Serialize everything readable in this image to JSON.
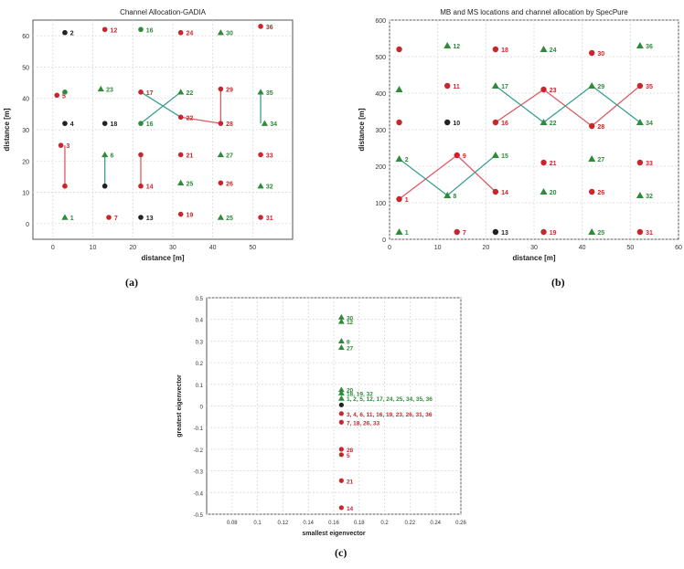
{
  "figure": {
    "label_a": "(a)",
    "label_b": "(b)",
    "label_c": "(c)"
  },
  "colors": {
    "red": "#c8262c",
    "green": "#2f8a3a",
    "black": "#222222",
    "link_red": "#e05a63",
    "link_green": "#3aa08f",
    "grid": "#d9d9d9"
  },
  "chart_data": [
    {
      "type": "scatter",
      "title": "Channel Allocation-GADIA",
      "xlabel": "distance [m]",
      "ylabel": "distance [m]",
      "xlim": [
        -5,
        60
      ],
      "ylim": [
        -5,
        65
      ],
      "xticks": [
        0,
        10,
        20,
        30,
        40,
        50
      ],
      "yticks": [
        0,
        10,
        20,
        30,
        40,
        50,
        60
      ],
      "grid": true,
      "points": [
        {
          "x": 1,
          "y": 41,
          "color": "red",
          "marker": "circle",
          "label": "5"
        },
        {
          "x": 2,
          "y": 25,
          "color": "red",
          "marker": "circle",
          "label": "3"
        },
        {
          "x": 3,
          "y": 42,
          "color": "green",
          "marker": "circle",
          "label": ""
        },
        {
          "x": 3,
          "y": 61,
          "color": "black",
          "marker": "circle",
          "label": "2"
        },
        {
          "x": 3,
          "y": 32,
          "color": "black",
          "marker": "circle",
          "label": "4"
        },
        {
          "x": 3,
          "y": 12,
          "color": "red",
          "marker": "circle",
          "label": ""
        },
        {
          "x": 3,
          "y": 2,
          "color": "green",
          "marker": "triangle",
          "label": "1"
        },
        {
          "x": 12,
          "y": 43,
          "color": "green",
          "marker": "triangle",
          "label": "23"
        },
        {
          "x": 13,
          "y": 62,
          "color": "red",
          "marker": "circle",
          "label": "12"
        },
        {
          "x": 13,
          "y": 32,
          "color": "black",
          "marker": "circle",
          "label": "18"
        },
        {
          "x": 13,
          "y": 22,
          "color": "green",
          "marker": "triangle",
          "label": "6"
        },
        {
          "x": 13,
          "y": 12,
          "color": "black",
          "marker": "circle",
          "label": ""
        },
        {
          "x": 14,
          "y": 2,
          "color": "red",
          "marker": "circle",
          "label": "7"
        },
        {
          "x": 22,
          "y": 62,
          "color": "green",
          "marker": "circle",
          "label": "16"
        },
        {
          "x": 22,
          "y": 42,
          "color": "red",
          "marker": "circle",
          "label": "17"
        },
        {
          "x": 22,
          "y": 32,
          "color": "green",
          "marker": "circle",
          "label": "16"
        },
        {
          "x": 22,
          "y": 22,
          "color": "red",
          "marker": "circle",
          "label": ""
        },
        {
          "x": 22,
          "y": 12,
          "color": "red",
          "marker": "circle",
          "label": "14"
        },
        {
          "x": 22,
          "y": 2,
          "color": "black",
          "marker": "circle",
          "label": "13"
        },
        {
          "x": 32,
          "y": 61,
          "color": "red",
          "marker": "circle",
          "label": "24"
        },
        {
          "x": 32,
          "y": 42,
          "color": "green",
          "marker": "triangle",
          "label": "22"
        },
        {
          "x": 32,
          "y": 34,
          "color": "red",
          "marker": "circle",
          "label": "22"
        },
        {
          "x": 32,
          "y": 22,
          "color": "red",
          "marker": "circle",
          "label": "21"
        },
        {
          "x": 32,
          "y": 13,
          "color": "green",
          "marker": "triangle",
          "label": "25"
        },
        {
          "x": 32,
          "y": 3,
          "color": "red",
          "marker": "circle",
          "label": "19"
        },
        {
          "x": 42,
          "y": 61,
          "color": "green",
          "marker": "triangle",
          "label": "30"
        },
        {
          "x": 42,
          "y": 43,
          "color": "red",
          "marker": "circle",
          "label": "29"
        },
        {
          "x": 42,
          "y": 32,
          "color": "red",
          "marker": "circle",
          "label": "28"
        },
        {
          "x": 42,
          "y": 22,
          "color": "green",
          "marker": "triangle",
          "label": "27"
        },
        {
          "x": 42,
          "y": 13,
          "color": "red",
          "marker": "circle",
          "label": "26"
        },
        {
          "x": 42,
          "y": 2,
          "color": "green",
          "marker": "triangle",
          "label": "25"
        },
        {
          "x": 52,
          "y": 63,
          "color": "red",
          "marker": "circle",
          "label": "36"
        },
        {
          "x": 52,
          "y": 42,
          "color": "green",
          "marker": "triangle",
          "label": "35"
        },
        {
          "x": 53,
          "y": 32,
          "color": "green",
          "marker": "triangle",
          "label": "34"
        },
        {
          "x": 52,
          "y": 22,
          "color": "red",
          "marker": "circle",
          "label": "33"
        },
        {
          "x": 52,
          "y": 12,
          "color": "green",
          "marker": "triangle",
          "label": "32"
        },
        {
          "x": 52,
          "y": 2,
          "color": "red",
          "marker": "circle",
          "label": "31"
        }
      ],
      "links": [
        {
          "x1": 3,
          "y1": 25,
          "x2": 3,
          "y2": 12,
          "color": "link_red"
        },
        {
          "x1": 13,
          "y1": 22,
          "x2": 13,
          "y2": 12,
          "color": "link_green"
        },
        {
          "x1": 22,
          "y1": 22,
          "x2": 22,
          "y2": 12,
          "color": "link_red"
        },
        {
          "x1": 22,
          "y1": 32,
          "x2": 32,
          "y2": 42,
          "color": "link_green"
        },
        {
          "x1": 22,
          "y1": 42,
          "x2": 32,
          "y2": 34,
          "color": "link_green"
        },
        {
          "x1": 32,
          "y1": 34,
          "x2": 42,
          "y2": 32,
          "color": "link_red"
        },
        {
          "x1": 42,
          "y1": 43,
          "x2": 42,
          "y2": 32,
          "color": "link_red"
        },
        {
          "x1": 52,
          "y1": 42,
          "x2": 52,
          "y2": 32,
          "color": "link_green"
        }
      ]
    },
    {
      "type": "scatter",
      "title": "MB and MS locations and channel allocation by SpecPure",
      "xlabel": "distance [m]",
      "ylabel": "distance [m]",
      "xlim": [
        0,
        60
      ],
      "ylim": [
        0,
        600
      ],
      "xticks": [
        0,
        10,
        20,
        30,
        40,
        50,
        60
      ],
      "yticks": [
        0,
        100,
        200,
        300,
        400,
        500,
        600
      ],
      "grid": true,
      "points": [
        {
          "x": 2,
          "y": 520,
          "color": "red",
          "marker": "circle",
          "label": ""
        },
        {
          "x": 2,
          "y": 410,
          "color": "green",
          "marker": "triangle",
          "label": ""
        },
        {
          "x": 2,
          "y": 320,
          "color": "red",
          "marker": "circle",
          "label": ""
        },
        {
          "x": 2,
          "y": 220,
          "color": "green",
          "marker": "triangle",
          "label": "2"
        },
        {
          "x": 2,
          "y": 110,
          "color": "red",
          "marker": "circle",
          "label": "1"
        },
        {
          "x": 2,
          "y": 20,
          "color": "green",
          "marker": "triangle",
          "label": "1"
        },
        {
          "x": 12,
          "y": 530,
          "color": "green",
          "marker": "triangle",
          "label": "12"
        },
        {
          "x": 12,
          "y": 420,
          "color": "red",
          "marker": "circle",
          "label": "11"
        },
        {
          "x": 12,
          "y": 320,
          "color": "black",
          "marker": "circle",
          "label": "10"
        },
        {
          "x": 14,
          "y": 230,
          "color": "red",
          "marker": "circle",
          "label": "9"
        },
        {
          "x": 12,
          "y": 120,
          "color": "green",
          "marker": "triangle",
          "label": "8"
        },
        {
          "x": 14,
          "y": 20,
          "color": "red",
          "marker": "circle",
          "label": "7"
        },
        {
          "x": 22,
          "y": 520,
          "color": "red",
          "marker": "circle",
          "label": "18"
        },
        {
          "x": 22,
          "y": 420,
          "color": "green",
          "marker": "triangle",
          "label": "17"
        },
        {
          "x": 22,
          "y": 320,
          "color": "red",
          "marker": "circle",
          "label": "16"
        },
        {
          "x": 22,
          "y": 230,
          "color": "green",
          "marker": "triangle",
          "label": "15"
        },
        {
          "x": 22,
          "y": 130,
          "color": "red",
          "marker": "circle",
          "label": "14"
        },
        {
          "x": 22,
          "y": 20,
          "color": "black",
          "marker": "circle",
          "label": "13"
        },
        {
          "x": 32,
          "y": 520,
          "color": "green",
          "marker": "triangle",
          "label": "24"
        },
        {
          "x": 32,
          "y": 410,
          "color": "red",
          "marker": "circle",
          "label": "23"
        },
        {
          "x": 32,
          "y": 320,
          "color": "green",
          "marker": "triangle",
          "label": "22"
        },
        {
          "x": 32,
          "y": 210,
          "color": "red",
          "marker": "circle",
          "label": "21"
        },
        {
          "x": 32,
          "y": 130,
          "color": "green",
          "marker": "triangle",
          "label": "20"
        },
        {
          "x": 32,
          "y": 20,
          "color": "red",
          "marker": "circle",
          "label": "19"
        },
        {
          "x": 42,
          "y": 510,
          "color": "red",
          "marker": "circle",
          "label": "30"
        },
        {
          "x": 42,
          "y": 420,
          "color": "green",
          "marker": "triangle",
          "label": "29"
        },
        {
          "x": 42,
          "y": 310,
          "color": "red",
          "marker": "circle",
          "label": "28"
        },
        {
          "x": 42,
          "y": 220,
          "color": "green",
          "marker": "triangle",
          "label": "27"
        },
        {
          "x": 42,
          "y": 130,
          "color": "red",
          "marker": "circle",
          "label": "26"
        },
        {
          "x": 42,
          "y": 20,
          "color": "green",
          "marker": "triangle",
          "label": "25"
        },
        {
          "x": 52,
          "y": 530,
          "color": "green",
          "marker": "triangle",
          "label": "36"
        },
        {
          "x": 52,
          "y": 420,
          "color": "red",
          "marker": "circle",
          "label": "35"
        },
        {
          "x": 52,
          "y": 320,
          "color": "green",
          "marker": "triangle",
          "label": "34"
        },
        {
          "x": 52,
          "y": 210,
          "color": "red",
          "marker": "circle",
          "label": "33"
        },
        {
          "x": 52,
          "y": 120,
          "color": "green",
          "marker": "triangle",
          "label": "32"
        },
        {
          "x": 52,
          "y": 20,
          "color": "red",
          "marker": "circle",
          "label": "31"
        }
      ],
      "links": [
        {
          "x1": 2,
          "y1": 110,
          "x2": 14,
          "y2": 230,
          "color": "link_red"
        },
        {
          "x1": 14,
          "y1": 230,
          "x2": 22,
          "y2": 130,
          "color": "link_red"
        },
        {
          "x1": 2,
          "y1": 220,
          "x2": 12,
          "y2": 120,
          "color": "link_green"
        },
        {
          "x1": 12,
          "y1": 120,
          "x2": 22,
          "y2": 230,
          "color": "link_green"
        },
        {
          "x1": 22,
          "y1": 320,
          "x2": 32,
          "y2": 410,
          "color": "link_red"
        },
        {
          "x1": 32,
          "y1": 410,
          "x2": 42,
          "y2": 310,
          "color": "link_red"
        },
        {
          "x1": 42,
          "y1": 310,
          "x2": 52,
          "y2": 420,
          "color": "link_red"
        },
        {
          "x1": 22,
          "y1": 420,
          "x2": 32,
          "y2": 320,
          "color": "link_green"
        },
        {
          "x1": 32,
          "y1": 320,
          "x2": 42,
          "y2": 420,
          "color": "link_green"
        },
        {
          "x1": 42,
          "y1": 420,
          "x2": 52,
          "y2": 320,
          "color": "link_green"
        }
      ]
    },
    {
      "type": "scatter",
      "title": "",
      "xlabel": "smallest eigenvector",
      "ylabel": "greatest eigenvector",
      "xlim": [
        0.06,
        0.26
      ],
      "ylim": [
        -0.5,
        0.5
      ],
      "xticks": [
        0.08,
        0.1,
        0.12,
        0.14,
        0.16,
        0.18,
        0.2,
        0.22,
        0.24,
        0.26
      ],
      "xticklabels": [
        "0.08",
        "0.1",
        "0.12",
        "0.14",
        "0.16",
        "0.18",
        "0.2",
        "0.22",
        "0.24",
        "0.26"
      ],
      "yticks": [
        -0.5,
        -0.4,
        -0.3,
        -0.2,
        -0.1,
        0,
        0.1,
        0.2,
        0.3,
        0.4,
        0.5
      ],
      "yticklabels": [
        "-0.5",
        "-0.4",
        "-0.3",
        "-0.2",
        "-0.1",
        "0",
        "0.1",
        "0.2",
        "0.3",
        "0.4",
        "0.5"
      ],
      "grid": true,
      "points": [
        {
          "x": 0.166,
          "y": 0.41,
          "color": "green",
          "marker": "triangle",
          "label": "30"
        },
        {
          "x": 0.166,
          "y": 0.39,
          "color": "green",
          "marker": "triangle",
          "label": "12"
        },
        {
          "x": 0.166,
          "y": 0.3,
          "color": "green",
          "marker": "triangle",
          "label": "8"
        },
        {
          "x": 0.166,
          "y": 0.27,
          "color": "green",
          "marker": "triangle",
          "label": "27"
        },
        {
          "x": 0.166,
          "y": 0.075,
          "color": "green",
          "marker": "triangle",
          "label": "20"
        },
        {
          "x": 0.166,
          "y": 0.06,
          "color": "green",
          "marker": "triangle",
          "label": "18, 19, 32"
        },
        {
          "x": 0.166,
          "y": 0.035,
          "color": "green",
          "marker": "triangle",
          "label": "1, 2, 5, 12, 17, 24, 25, 34, 35, 36"
        },
        {
          "x": 0.166,
          "y": 0.005,
          "color": "black",
          "marker": "circle",
          "label": ""
        },
        {
          "x": 0.166,
          "y": -0.035,
          "color": "red",
          "marker": "circle",
          "label": "3, 4, 6, 11, 16, 19, 23, 26, 31, 36"
        },
        {
          "x": 0.166,
          "y": -0.075,
          "color": "red",
          "marker": "circle",
          "label": "7, 18, 26, 33"
        },
        {
          "x": 0.166,
          "y": -0.2,
          "color": "red",
          "marker": "circle",
          "label": "28"
        },
        {
          "x": 0.166,
          "y": -0.225,
          "color": "red",
          "marker": "circle",
          "label": "5"
        },
        {
          "x": 0.166,
          "y": -0.345,
          "color": "red",
          "marker": "circle",
          "label": "21"
        },
        {
          "x": 0.166,
          "y": -0.47,
          "color": "red",
          "marker": "circle",
          "label": "14"
        }
      ],
      "links": []
    }
  ]
}
